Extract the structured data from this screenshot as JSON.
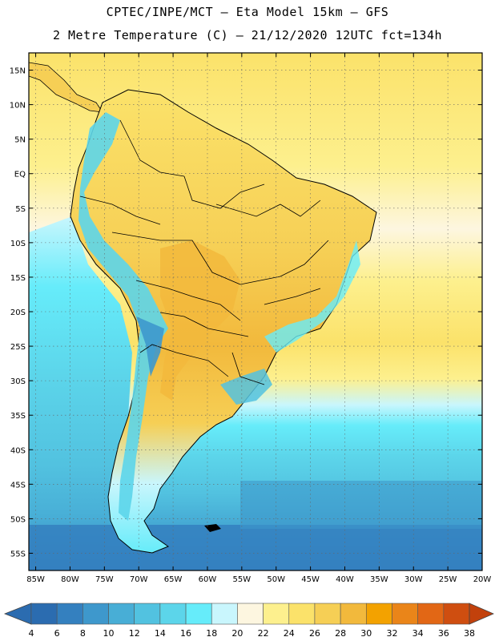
{
  "header": {
    "line1": "CPTEC/INPE/MCT —  Eta Model 15km — GFS",
    "line2": "2 Metre Temperature (C) — 21/12/2020 12UTC fct=134h"
  },
  "map": {
    "lat_labels": [
      "15N",
      "10N",
      "5N",
      "EQ",
      "5S",
      "10S",
      "15S",
      "20S",
      "25S",
      "30S",
      "35S",
      "40S",
      "45S",
      "50S",
      "55S"
    ],
    "lat_values": [
      15,
      10,
      5,
      0,
      -5,
      -10,
      -15,
      -20,
      -25,
      -30,
      -35,
      -40,
      -45,
      -50,
      -55
    ],
    "lon_labels": [
      "85W",
      "80W",
      "75W",
      "70W",
      "65W",
      "60W",
      "55W",
      "50W",
      "45W",
      "40W",
      "35W",
      "30W",
      "25W",
      "20W"
    ],
    "lon_values": [
      -85,
      -80,
      -75,
      -70,
      -65,
      -60,
      -55,
      -50,
      -45,
      -40,
      -35,
      -30,
      -25,
      -20
    ],
    "lat_range": [
      -57.5,
      17.5
    ],
    "lon_range": [
      -86,
      -20
    ]
  },
  "colorbar": {
    "labels": [
      "4",
      "6",
      "8",
      "10",
      "12",
      "14",
      "16",
      "18",
      "20",
      "22",
      "24",
      "26",
      "28",
      "30",
      "32",
      "34",
      "36",
      "38"
    ],
    "colors": [
      "#2b6cb0",
      "#3480bf",
      "#3e98cc",
      "#48aed6",
      "#52c2e0",
      "#5cd5ea",
      "#66ecfa",
      "#c9f6fd",
      "#fdf6e0",
      "#fdf08e",
      "#fbe26a",
      "#f6cf55",
      "#f2b93c",
      "#f3a200",
      "#ea8519",
      "#e26715",
      "#cf4e10",
      "#c2410c"
    ],
    "low_color": "#2b6cb0",
    "high_color": "#c2410c"
  }
}
